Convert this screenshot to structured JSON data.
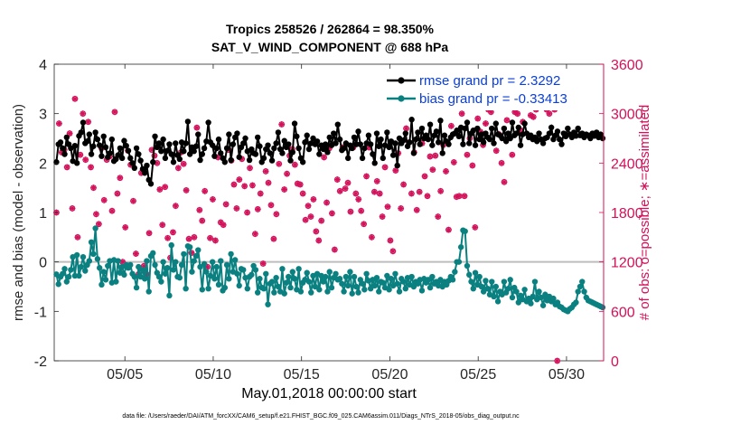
{
  "chart_data": {
    "type": "line",
    "title_line1": "Tropics 258526 / 262864 = 98.350%",
    "title_line2": "SAT_V_WIND_COMPONENT @ 688 hPa",
    "xlabel": "May.01,2018 00:00:00 start",
    "ylabel_left": "rmse and bias (model - observation)",
    "ylabel_right": "# of obs: o=possible; ∗=assimilated",
    "footnote": "data file: /Users/raeder/DAI/ATM_forcXX/CAM6_setup/f.e21.FHIST_BGC.f09_025.CAM6assim.011/Diags_NTrS_2018-05/obs_diag_output.nc",
    "xlim": [
      1.0,
      32.1
    ],
    "ylim_left": [
      -2,
      4
    ],
    "ylim_right": [
      0,
      3600
    ],
    "x_ticks": [
      5,
      10,
      15,
      20,
      25,
      30
    ],
    "x_tick_labels": [
      "05/05",
      "05/10",
      "05/15",
      "05/20",
      "05/25",
      "05/30"
    ],
    "y_ticks_left": [
      -2,
      -1,
      0,
      1,
      2,
      3,
      4
    ],
    "y_tick_labels_left": [
      "-2",
      "-1",
      "0",
      "1",
      "2",
      "3",
      "4"
    ],
    "y_ticks_right": [
      0,
      600,
      1200,
      1800,
      2400,
      3000,
      3600
    ],
    "y_tick_labels_right": [
      "0",
      "600",
      "1200",
      "1800",
      "2400",
      "3000",
      "3600"
    ],
    "zero_line": 0,
    "x_start": 1.125,
    "x_step": 0.25,
    "series": [
      {
        "name": "rmse grand pr = 2.3292",
        "color": "#000000",
        "axis": "left",
        "values": [
          2.02,
          2.38,
          2.42,
          2.3,
          2.18,
          2.52,
          2.38,
          2.3,
          2.04,
          2.35,
          2.0,
          2.55,
          2.62,
          2.82,
          2.4,
          2.44,
          2.58,
          2.18,
          2.34,
          2.62,
          2.48,
          2.36,
          2.14,
          2.54,
          2.32,
          2.12,
          2.2,
          2.48,
          2.04,
          2.08,
          2.16,
          2.3,
          2.1,
          2.45,
          2.35,
          2.25,
          2.1,
          2.0,
          1.9,
          2.3,
          2.18,
          2.05,
          1.88,
          1.8,
          1.95,
          1.66,
          1.58,
          2.02,
          2.54,
          2.32,
          2.4,
          2.24,
          2.48,
          2.1,
          2.25,
          2.38,
          2.18,
          2.02,
          2.4,
          2.16,
          2.08,
          2.42,
          2.24,
          2.4,
          2.84,
          2.18,
          2.32,
          2.24,
          2.34,
          2.58,
          2.06,
          2.18,
          2.3,
          2.44,
          2.82,
          2.42,
          2.36,
          2.14,
          2.3,
          2.48,
          2.2,
          2.1,
          2.02,
          2.3,
          2.58,
          2.06,
          2.38,
          2.52,
          2.6,
          2.12,
          2.32,
          2.4,
          2.5,
          2.24,
          2.06,
          2.28,
          2.2,
          2.18,
          2.52,
          2.34,
          2.02,
          2.1,
          2.28,
          2.36,
          2.2,
          2.05,
          2.3,
          2.4,
          2.62,
          2.28,
          2.2,
          2.45,
          2.32,
          2.38,
          2.05,
          2.22,
          2.8,
          2.54,
          2.3,
          2.1,
          2.02,
          2.42,
          2.56,
          2.28,
          2.4,
          2.5,
          2.38,
          2.44,
          2.18,
          2.36,
          2.28,
          2.38,
          2.22,
          2.52,
          2.36,
          2.6,
          2.4,
          2.78,
          2.48,
          2.26,
          2.3,
          2.4,
          2.1,
          2.36,
          2.3,
          2.52,
          2.38,
          2.64,
          2.38,
          2.1,
          2.3,
          2.4,
          2.56,
          2.38,
          2.18,
          2.0,
          2.6,
          2.34,
          2.48,
          2.1,
          2.36,
          2.62,
          2.32,
          2.44,
          2.16,
          2.4,
          1.95,
          2.5,
          2.4,
          2.46,
          2.6,
          2.34,
          2.42,
          2.88,
          2.2,
          2.48,
          2.62,
          2.38,
          2.7,
          2.5,
          2.56,
          2.48,
          2.78,
          2.36,
          2.56,
          2.64,
          2.42,
          2.86,
          2.2,
          2.56,
          2.44,
          2.38,
          2.52,
          2.58,
          2.6,
          2.66,
          2.54,
          2.72,
          2.38,
          2.7,
          2.82,
          2.4,
          2.6,
          2.66,
          2.36,
          2.7,
          2.48,
          2.58,
          2.42,
          2.6,
          2.52,
          2.48,
          2.7,
          2.4,
          2.8,
          2.58,
          2.56,
          2.5,
          2.7,
          2.44,
          2.6,
          2.5,
          2.82,
          2.56,
          2.6,
          2.72,
          2.36,
          2.58,
          2.8,
          2.6,
          2.52,
          2.56,
          2.48,
          2.52,
          2.44,
          2.6,
          2.48,
          2.4,
          2.5,
          2.52,
          2.6,
          2.72,
          2.48,
          2.56,
          2.64,
          2.48,
          2.38,
          2.6,
          2.54,
          2.7,
          2.58,
          2.52,
          2.62,
          2.55,
          2.7,
          2.56,
          2.6,
          2.52,
          2.58,
          2.56,
          2.5,
          2.6,
          2.55,
          2.62,
          2.52,
          2.58,
          2.5,
          2.56,
          2.6,
          2.55,
          2.62,
          2.55,
          2.56,
          2.5,
          2.58,
          2.55,
          2.56,
          2.52,
          2.58,
          2.56,
          2.54,
          2.55
        ]
      },
      {
        "name": "bias grand pr = -0.33413",
        "color": "#0a8080",
        "axis": "left",
        "values": [
          -0.25,
          -0.45,
          -0.3,
          -0.24,
          -0.14,
          -0.4,
          -0.3,
          -0.16,
          0.1,
          -0.28,
          0.14,
          -0.28,
          -0.1,
          0.1,
          -0.18,
          -0.06,
          0.02,
          0.4,
          0.16,
          0.68,
          0.06,
          -0.12,
          -0.46,
          -0.2,
          -0.36,
          -0.08,
          0.02,
          -0.42,
          0.04,
          -0.4,
          0.02,
          -0.22,
          -0.1,
          -0.26,
          -0.06,
          -0.12,
          -0.06,
          -0.24,
          -0.3,
          -0.52,
          -0.1,
          -0.3,
          -0.16,
          -0.34,
          0.02,
          -0.6,
          0.12,
          0.18,
          -0.06,
          -0.22,
          -0.3,
          -0.4,
          0.0,
          -0.24,
          -0.12,
          -0.68,
          0.34,
          -0.16,
          0.0,
          -0.3,
          -0.32,
          -0.06,
          0.16,
          -0.54,
          0.32,
          0.3,
          -0.2,
          0.02,
          0.12,
          0.24,
          -0.1,
          -0.56,
          -0.04,
          -0.2,
          -0.54,
          -0.28,
          0.0,
          -0.34,
          -0.1,
          -0.46,
          0.02,
          -0.58,
          -0.52,
          -0.06,
          -0.34,
          0.16,
          -0.2,
          0.04,
          -0.24,
          -0.48,
          -0.14,
          -0.16,
          -0.32,
          -0.54,
          -0.3,
          -0.26,
          -0.08,
          -0.16,
          -0.62,
          -0.34,
          -0.52,
          -0.54,
          -0.24,
          -0.86,
          -0.44,
          -0.4,
          -0.62,
          -0.32,
          -0.5,
          -0.6,
          -0.14,
          -0.64,
          -0.42,
          -0.3,
          -0.52,
          -0.2,
          -0.34,
          -0.56,
          -0.14,
          -0.6,
          -0.42,
          -0.36,
          -0.22,
          -0.4,
          -0.62,
          -0.28,
          -0.5,
          -0.24,
          -0.56,
          -0.28,
          -0.4,
          -0.3,
          -0.6,
          -0.2,
          -0.52,
          -0.32,
          -0.24,
          -0.36,
          -0.34,
          -0.44,
          -0.6,
          -0.3,
          -0.48,
          -0.2,
          -0.64,
          -0.3,
          -0.5,
          -0.62,
          -0.36,
          -0.44,
          -0.56,
          -0.24,
          -0.38,
          -0.54,
          -0.36,
          -0.48,
          -0.32,
          -0.6,
          -0.4,
          -0.42,
          -0.52,
          -0.28,
          -0.56,
          -0.34,
          -0.48,
          -0.24,
          -0.44,
          -0.6,
          -0.34,
          -0.4,
          -0.54,
          -0.32,
          -0.46,
          -0.3,
          -0.5,
          -0.4,
          -0.44,
          -0.36,
          -0.58,
          -0.34,
          -0.42,
          -0.36,
          -0.52,
          -0.3,
          -0.44,
          -0.4,
          -0.48,
          -0.36,
          -0.5,
          -0.4,
          -0.46,
          -0.38,
          -0.3,
          -0.36,
          -0.2,
          0.0,
          0.0,
          0.3,
          0.64,
          0.62,
          -0.08,
          -0.26,
          -0.4,
          -0.54,
          -0.22,
          -0.46,
          -0.3,
          -0.5,
          -0.6,
          -0.38,
          -0.54,
          -0.66,
          -0.4,
          -0.7,
          -0.5,
          -0.8,
          -0.6,
          -0.66,
          -0.4,
          -0.62,
          -0.54,
          -0.36,
          -0.72,
          -0.52,
          -0.6,
          -0.82,
          -0.68,
          -0.76,
          -0.56,
          -0.8,
          -0.74,
          -0.84,
          -0.7,
          -0.4,
          -0.76,
          -0.6,
          -0.72,
          -0.88,
          -0.66,
          -0.78,
          -0.7,
          -0.8,
          -0.74,
          -0.86,
          -0.82,
          -0.9,
          -0.92,
          -0.96,
          -0.98,
          -1.0,
          -0.95,
          -0.92,
          -0.86,
          -0.82,
          -0.6,
          -0.5,
          -0.4,
          -0.6,
          -0.72,
          -0.78,
          -0.8,
          -0.82,
          -0.84,
          -0.86,
          -0.88,
          -0.9,
          -0.92,
          -0.94,
          -0.96,
          -0.97,
          -0.98,
          -1.0
        ]
      }
    ],
    "obs_possible": {
      "name": "# obs possible",
      "color": "#d3105a",
      "axis": "right",
      "values": [
        1800,
        2880,
        2530,
        2560,
        2350,
        2760,
        1850,
        3180,
        1500,
        2500,
        3000,
        2440,
        2900,
        2350,
        2100,
        1780,
        1660,
        2580,
        1950,
        2440,
        2480,
        1820,
        3020,
        2030,
        2220,
        1200,
        1620,
        2550,
        2380,
        1940,
        1300,
        1050,
        2280,
        1150,
        1050,
        1550,
        2560,
        2490,
        2400,
        2080,
        1650,
        2110,
        1490,
        1250,
        1560,
        1880,
        2340,
        2530,
        2390,
        2070,
        1480,
        1310,
        1500,
        2830,
        1830,
        1700,
        2060,
        1140,
        1490,
        1960,
        1460,
        2470,
        1680,
        1650,
        1900,
        2560,
        2430,
        2140,
        1850,
        2200,
        2450,
        2120,
        1800,
        2340,
        2130,
        1540,
        1840,
        2030,
        1180,
        2300,
        2160,
        1890,
        1480,
        1780,
        2390,
        2870,
        2080,
        2270,
        2490,
        2570,
        2380,
        2150,
        2140,
        2030,
        1710,
        1880,
        1750,
        1960,
        1570,
        1460,
        1700,
        2470,
        1920,
        2580,
        1790,
        1350,
        2200,
        2060,
        2590,
        2090,
        2160,
        1810,
        2590,
        2030,
        1960,
        1820,
        1660,
        2240,
        2590,
        1500,
        2050,
        2180,
        2030,
        1750,
        2350,
        1870,
        1460,
        1330,
        2310,
        2520,
        1850,
        2140,
        2820,
        2650,
        2030,
        2530,
        1830,
        2050,
        2640,
        2240,
        2000,
        2480,
        2320,
        2490,
        1750,
        2060,
        2620,
        2300,
        1590,
        2850,
        2410,
        1990,
        2000,
        3000,
        2000,
        2500,
        2700,
        2370,
        1620,
        2940,
        2780,
        2620,
        2880,
        3050,
        3020,
        3360,
        2550,
        2750,
        2400,
        2170,
        2920,
        3080,
        2500,
        3020,
        3000,
        2800,
        2900,
        3150,
        3100,
        2980,
        2960,
        3050,
        3100,
        3080,
        3120,
        3050,
        3000,
        3100,
        3050,
        0
      ]
    }
  },
  "legend": {
    "rmse_label": "rmse grand pr = 2.3292",
    "bias_label": "bias grand pr = -0.33413"
  }
}
